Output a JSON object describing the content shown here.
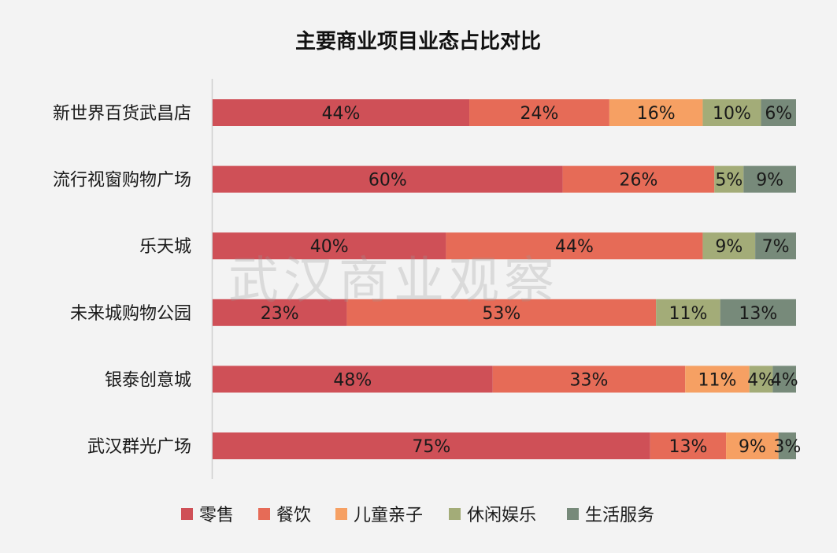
{
  "chart_data": {
    "type": "bar",
    "orientation": "horizontal",
    "stacked": true,
    "percent": true,
    "title": "主要商业项目业态占比对比",
    "categories": [
      "新世界百货武昌店",
      "流行视窗购物广场",
      "乐天城",
      "未来城购物公园",
      "银泰创意城",
      "武汉群光广场"
    ],
    "series": [
      {
        "name": "零售",
        "color": "#cf5057",
        "values": [
          44,
          60,
          40,
          23,
          48,
          75
        ]
      },
      {
        "name": "餐饮",
        "color": "#e66b57",
        "values": [
          24,
          26,
          44,
          53,
          33,
          13
        ]
      },
      {
        "name": "儿童亲子",
        "color": "#f6a063",
        "values": [
          16,
          0,
          0,
          0,
          11,
          9
        ]
      },
      {
        "name": "休闲娱乐",
        "color": "#a3ac78",
        "values": [
          10,
          5,
          9,
          11,
          4,
          0
        ]
      },
      {
        "name": "生活服务",
        "color": "#778a7a",
        "values": [
          6,
          9,
          7,
          13,
          4,
          3
        ]
      }
    ],
    "value_suffix": "%",
    "legend_position": "bottom",
    "grid": false
  },
  "watermark": "武汉商业观察",
  "background_color": "#f3f3f3"
}
